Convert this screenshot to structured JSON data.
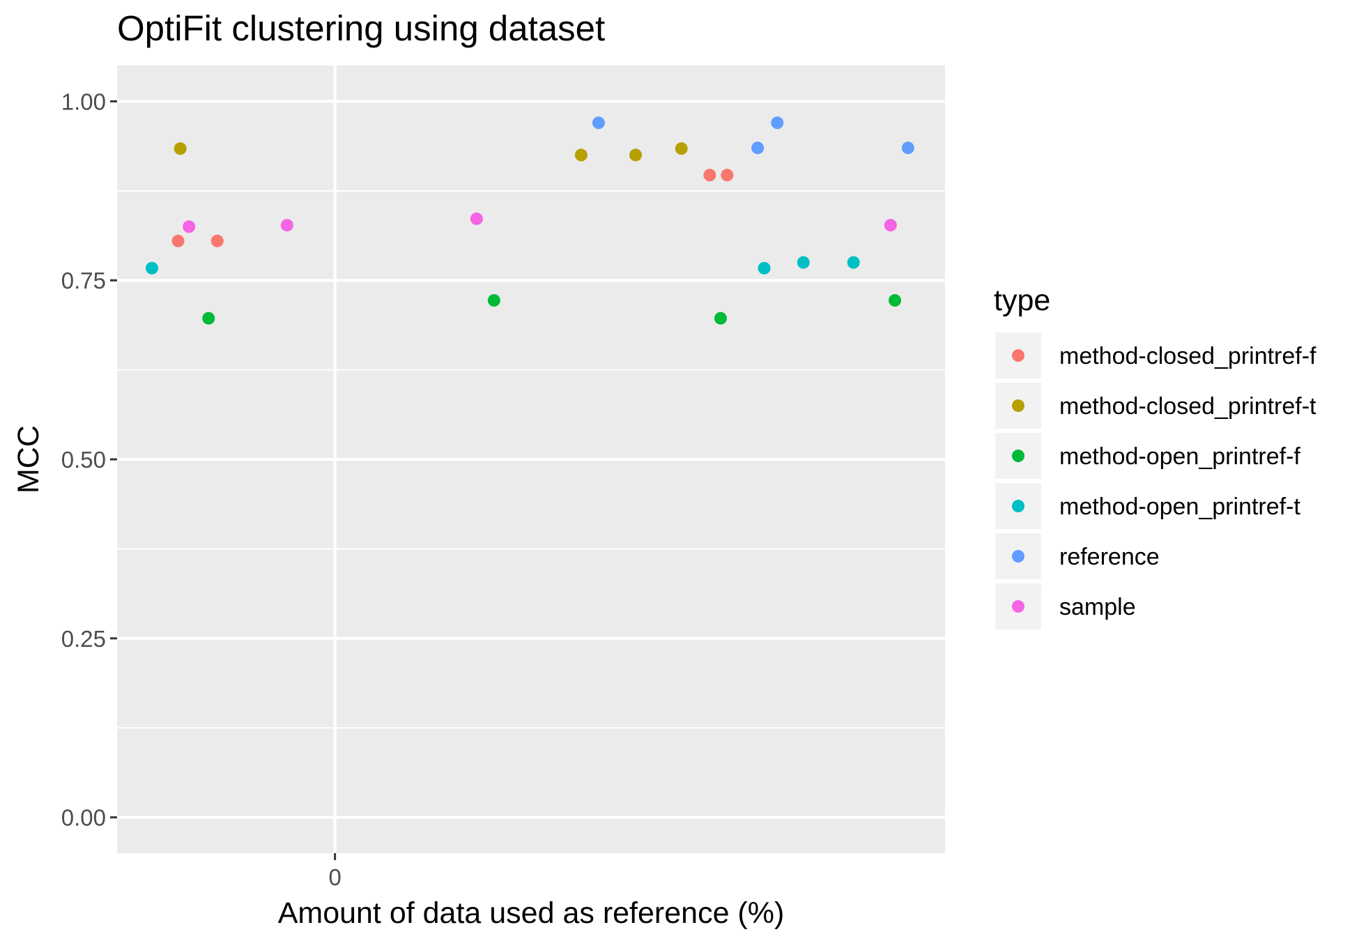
{
  "chart_data": {
    "type": "scatter",
    "title": "OptiFit clustering using  dataset",
    "xlabel": "Amount of data used as reference (%)",
    "ylabel": "MCC",
    "x_ticks": [
      "0"
    ],
    "y_ticks": [
      "0.00",
      "0.25",
      "0.50",
      "0.75",
      "1.00"
    ],
    "ylim": [
      -0.05,
      1.05
    ],
    "grid": true,
    "legend": {
      "title": "type",
      "position": "right"
    },
    "series": [
      {
        "name": "method-closed_printref-f",
        "color": "#F8766D",
        "points": [
          {
            "x": -0.72,
            "y": 0.805
          },
          {
            "x": -0.54,
            "y": 0.805
          },
          {
            "x": 1.72,
            "y": 0.897
          },
          {
            "x": 1.8,
            "y": 0.897
          }
        ]
      },
      {
        "name": "method-closed_printref-t",
        "color": "#B79F00",
        "points": [
          {
            "x": -0.71,
            "y": 0.934
          },
          {
            "x": 1.13,
            "y": 0.925
          },
          {
            "x": 1.38,
            "y": 0.925
          },
          {
            "x": 1.59,
            "y": 0.934
          }
        ]
      },
      {
        "name": "method-open_printref-f",
        "color": "#00BA38",
        "points": [
          {
            "x": -0.58,
            "y": 0.697
          },
          {
            "x": 0.73,
            "y": 0.722
          },
          {
            "x": 1.77,
            "y": 0.697
          },
          {
            "x": 2.57,
            "y": 0.722
          }
        ]
      },
      {
        "name": "method-open_printref-t",
        "color": "#00BFC4",
        "points": [
          {
            "x": -0.84,
            "y": 0.767
          },
          {
            "x": 1.97,
            "y": 0.767
          },
          {
            "x": 2.15,
            "y": 0.775
          },
          {
            "x": 2.38,
            "y": 0.775
          }
        ]
      },
      {
        "name": "reference",
        "color": "#619CFF",
        "points": [
          {
            "x": 1.21,
            "y": 0.97
          },
          {
            "x": 1.94,
            "y": 0.935
          },
          {
            "x": 2.03,
            "y": 0.97
          },
          {
            "x": 2.63,
            "y": 0.935
          }
        ]
      },
      {
        "name": "sample",
        "color": "#F564E3",
        "points": [
          {
            "x": -0.67,
            "y": 0.825
          },
          {
            "x": -0.22,
            "y": 0.827
          },
          {
            "x": 0.65,
            "y": 0.836
          },
          {
            "x": 2.55,
            "y": 0.827
          }
        ]
      }
    ]
  }
}
